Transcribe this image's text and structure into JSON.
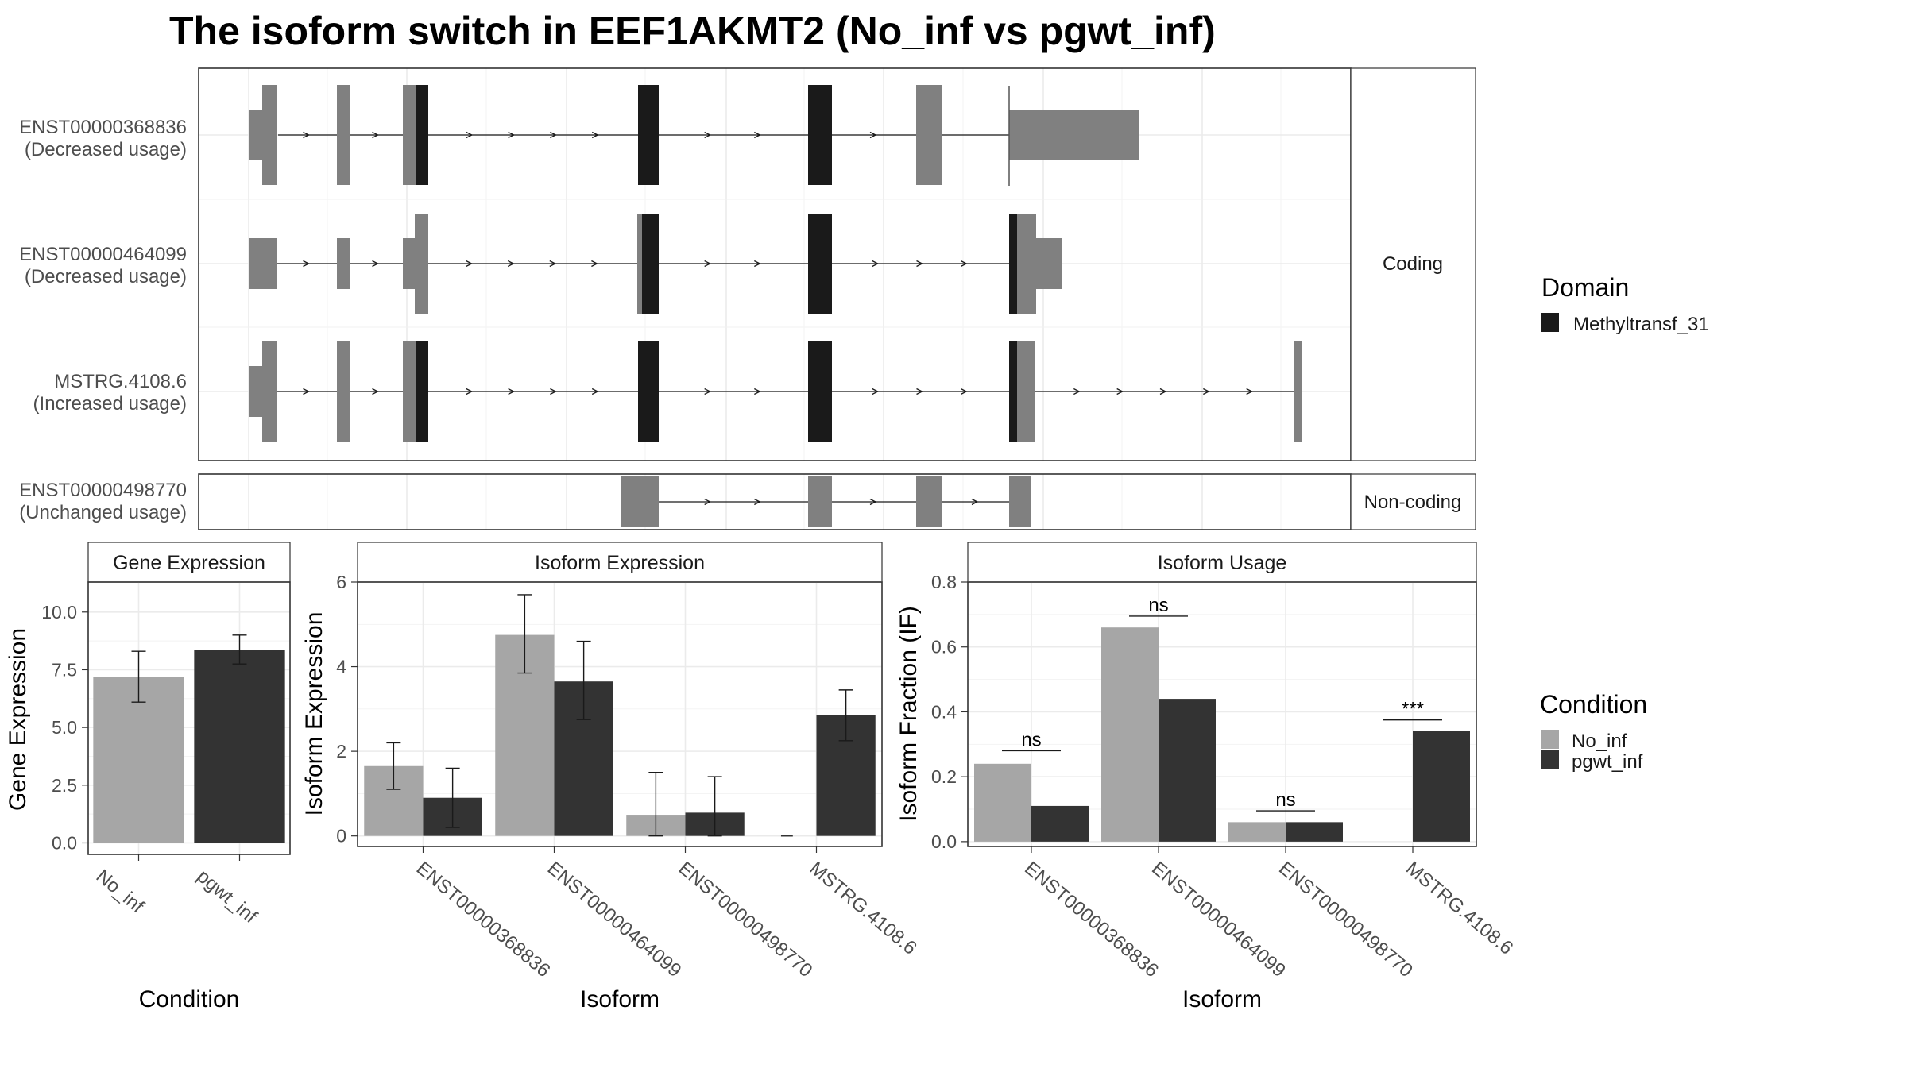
{
  "title": "The isoform switch in EEF1AKMT2 (No_inf vs pgwt_inf)",
  "legends": {
    "domain": {
      "title": "Domain",
      "items": [
        {
          "label": "Methyltransf_31",
          "color": "#1a1a1a"
        }
      ]
    },
    "condition": {
      "title": "Condition",
      "items": [
        {
          "label": "No_inf",
          "color": "#a6a6a6"
        },
        {
          "label": "pgwt_inf",
          "color": "#333333"
        }
      ]
    }
  },
  "colors": {
    "exon": "#808080",
    "domain": "#1a1a1a",
    "no_inf": "#a6a6a6",
    "pgwt_inf": "#333333"
  },
  "chart_data": [
    {
      "type": "gene-structure",
      "facets": [
        {
          "label": "Coding",
          "transcripts": [
            {
              "id": "ENST00000368836",
              "note": "(Decreased usage)"
            },
            {
              "id": "ENST00000464099",
              "note": "(Decreased usage)"
            },
            {
              "id": "MSTRG.4108.6",
              "note": "(Increased usage)"
            }
          ]
        },
        {
          "label": "Non-coding",
          "transcripts": [
            {
              "id": "ENST00000498770",
              "note": "(Unchanged usage)"
            }
          ]
        }
      ]
    },
    {
      "type": "bar",
      "title": "Gene Expression",
      "xlabel": "Condition",
      "ylabel": "Gene Expression",
      "categories": [
        "No_inf",
        "pgwt_inf"
      ],
      "values": [
        7.2,
        8.35
      ],
      "errors_low": [
        6.1,
        7.75
      ],
      "errors_high": [
        8.3,
        9.0
      ],
      "ylim": [
        -0.5,
        11.3
      ],
      "ticks": [
        "0.0",
        "2.5",
        "5.0",
        "7.5",
        "10.0"
      ],
      "tick_values": [
        0,
        2.5,
        5,
        7.5,
        10
      ]
    },
    {
      "type": "bar",
      "title": "Isoform Expression",
      "xlabel": "Isoform",
      "ylabel": "Isoform Expression",
      "categories": [
        "ENST00000368836",
        "ENST00000464099",
        "ENST00000498770",
        "MSTRG.4108.6"
      ],
      "series": [
        {
          "name": "No_inf",
          "values": [
            1.65,
            4.75,
            0.5,
            0.0
          ],
          "err_low": [
            1.1,
            3.85,
            0.0,
            0.0
          ],
          "err_high": [
            2.2,
            5.7,
            1.5,
            0.0
          ]
        },
        {
          "name": "pgwt_inf",
          "values": [
            0.9,
            3.65,
            0.55,
            2.85
          ],
          "err_low": [
            0.2,
            2.75,
            0.0,
            2.25
          ],
          "err_high": [
            1.6,
            4.6,
            1.4,
            3.45
          ]
        }
      ],
      "ylim": [
        -0.25,
        6.0
      ],
      "ticks": [
        "0",
        "2",
        "4",
        "6"
      ],
      "tick_values": [
        0,
        2,
        4,
        6
      ]
    },
    {
      "type": "bar",
      "title": "Isoform Usage",
      "xlabel": "Isoform",
      "ylabel": "Isoform Fraction (IF)",
      "categories": [
        "ENST00000368836",
        "ENST00000464099",
        "ENST00000498770",
        "MSTRG.4108.6"
      ],
      "series": [
        {
          "name": "No_inf",
          "values": [
            0.24,
            0.66,
            0.06,
            0.0
          ]
        },
        {
          "name": "pgwt_inf",
          "values": [
            0.11,
            0.44,
            0.06,
            0.34
          ]
        }
      ],
      "annotations": [
        "ns",
        "ns",
        "ns",
        "***"
      ],
      "annotation_y": [
        0.28,
        0.695,
        0.095,
        0.375
      ],
      "ylim": [
        -0.015,
        0.8
      ],
      "ticks": [
        "0.0",
        "0.2",
        "0.4",
        "0.6",
        "0.8"
      ],
      "tick_values": [
        0,
        0.2,
        0.4,
        0.6,
        0.8
      ]
    }
  ]
}
